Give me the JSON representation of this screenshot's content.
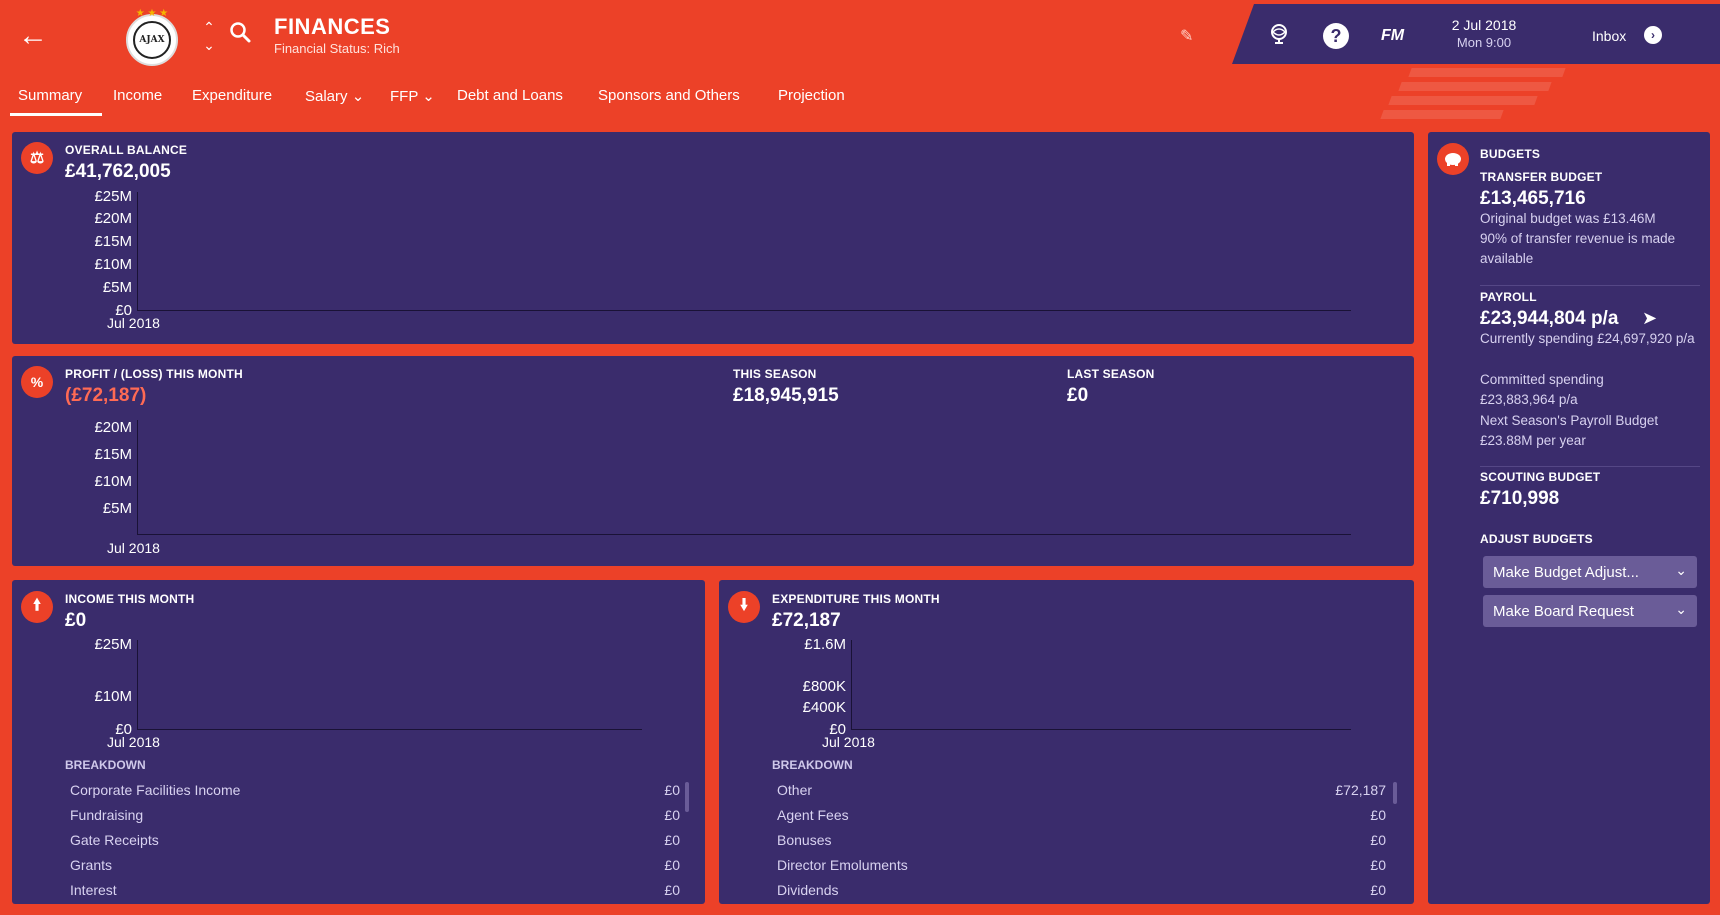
{
  "header": {
    "title": "FINANCES",
    "subtitle": "Financial Status: Rich",
    "club_badge_text": "AJAX",
    "date": "2 Jul 2018",
    "time": "Mon 9:00",
    "inbox_label": "Inbox",
    "fm_logo": "FM"
  },
  "tabs": [
    {
      "label": "Summary"
    },
    {
      "label": "Income"
    },
    {
      "label": "Expenditure"
    },
    {
      "label": "Salary"
    },
    {
      "label": "FFP"
    },
    {
      "label": "Debt and Loans"
    },
    {
      "label": "Sponsors and Others"
    },
    {
      "label": "Projection"
    }
  ],
  "overall_balance": {
    "label": "OVERALL BALANCE",
    "value": "£41,762,005",
    "y_ticks": [
      "£25M",
      "£20M",
      "£15M",
      "£10M",
      "£5M",
      "£0"
    ],
    "x_ticks": [
      "Jul 2018"
    ]
  },
  "profit": {
    "label": "PROFIT / (LOSS) THIS MONTH",
    "value": "(£72,187)",
    "season_label": "THIS SEASON",
    "season_value": "£18,945,915",
    "last_label": "LAST SEASON",
    "last_value": "£0",
    "y_ticks": [
      "£20M",
      "£15M",
      "£10M",
      "£5M"
    ],
    "x_ticks": [
      "Jul 2018"
    ]
  },
  "income": {
    "label": "INCOME THIS MONTH",
    "value": "£0",
    "y_ticks": [
      "£25M",
      "£10M",
      "£0"
    ],
    "x_ticks": [
      "Jul 2018"
    ],
    "breakdown_label": "BREAKDOWN",
    "breakdown": [
      {
        "name": "Corporate Facilities Income",
        "value": "£0"
      },
      {
        "name": "Fundraising",
        "value": "£0"
      },
      {
        "name": "Gate Receipts",
        "value": "£0"
      },
      {
        "name": "Grants",
        "value": "£0"
      },
      {
        "name": "Interest",
        "value": "£0"
      }
    ]
  },
  "expenditure": {
    "label": "EXPENDITURE THIS MONTH",
    "value": "£72,187",
    "y_ticks": [
      "£1.6M",
      "£800K",
      "£400K",
      "£0"
    ],
    "x_ticks": [
      "Jul 2018"
    ],
    "breakdown_label": "BREAKDOWN",
    "breakdown": [
      {
        "name": "Other",
        "value": "£72,187"
      },
      {
        "name": "Agent Fees",
        "value": "£0"
      },
      {
        "name": "Bonuses",
        "value": "£0"
      },
      {
        "name": "Director Emoluments",
        "value": "£0"
      },
      {
        "name": "Dividends",
        "value": "£0"
      }
    ]
  },
  "budgets": {
    "label": "BUDGETS",
    "transfer_label": "TRANSFER BUDGET",
    "transfer_value": "£13,465,716",
    "transfer_note1": "Original budget was £13.46M",
    "transfer_note2": "90% of transfer revenue is made available",
    "payroll_label": "PAYROLL",
    "payroll_value": "£23,944,804 p/a",
    "payroll_current": "Currently spending £24,697,920 p/a",
    "payroll_committed": "Committed spending £23,883,964 p/a",
    "payroll_next": "Next Season's Payroll Budget £23.88M per year",
    "scouting_label": "SCOUTING BUDGET",
    "scouting_value": "£710,998",
    "adjust_label": "ADJUST BUDGETS",
    "btn_adjust": "Make Budget Adjust...",
    "btn_board": "Make Board Request"
  },
  "colors": {
    "background": "#ec4128",
    "panel": "#3a2c6c",
    "negative": "#ff6a54"
  }
}
